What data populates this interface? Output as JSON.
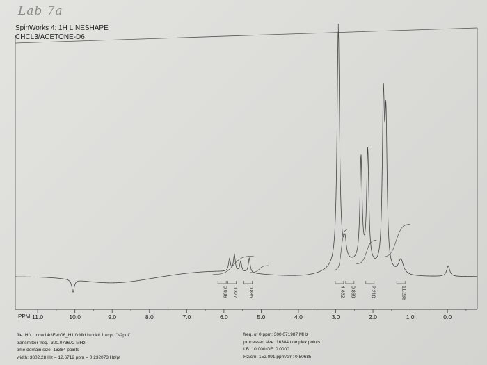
{
  "handwriting": "Lab 7a",
  "header": {
    "title": "SpinWorks 4:  1H LINESHAPE",
    "solvent": "CHCL3/ACETONE-D6"
  },
  "chart_data": {
    "type": "line",
    "title": "SpinWorks 4:  1H LINESHAPE",
    "subtitle": "CHCL3/ACETONE-D6",
    "xlabel": "PPM",
    "ylabel": "",
    "xlim": [
      11.6,
      -0.8
    ],
    "x_reversed": true,
    "ylim": [
      0,
      100
    ],
    "grid": false,
    "x_ticks": [
      11.0,
      10.0,
      9.0,
      8.0,
      7.0,
      6.0,
      5.0,
      4.0,
      3.0,
      2.0,
      1.0,
      0.0
    ],
    "x_tick_labels": [
      "11.0",
      "10.0",
      "9.0",
      "8.0",
      "7.0",
      "6.0",
      "5.0",
      "4.0",
      "3.0",
      "2.0",
      "1.0",
      "0.0"
    ],
    "peaks": [
      {
        "ppm": 10.05,
        "height": -6,
        "width": 0.04
      },
      {
        "ppm": 5.85,
        "height": 6,
        "width": 0.03
      },
      {
        "ppm": 5.72,
        "height": 8,
        "width": 0.03
      },
      {
        "ppm": 5.55,
        "height": 5,
        "width": 0.03
      },
      {
        "ppm": 5.32,
        "height": 7,
        "width": 0.03
      },
      {
        "ppm": 2.93,
        "height": 115,
        "width": 0.04
      },
      {
        "ppm": 2.75,
        "height": 9,
        "width": 0.04
      },
      {
        "ppm": 2.32,
        "height": 50,
        "width": 0.035
      },
      {
        "ppm": 2.14,
        "height": 54,
        "width": 0.035
      },
      {
        "ppm": 1.72,
        "height": 76,
        "width": 0.035
      },
      {
        "ppm": 1.65,
        "height": 66,
        "width": 0.035
      },
      {
        "ppm": 1.25,
        "height": 7,
        "width": 0.08
      },
      {
        "ppm": -0.02,
        "height": 5,
        "width": 0.05
      }
    ],
    "integral_labels": [
      {
        "ppm": 6.05,
        "label": "0.996"
      },
      {
        "ppm": 5.78,
        "label": "0.327"
      },
      {
        "ppm": 5.35,
        "label": "0.885"
      },
      {
        "ppm": 2.9,
        "label": "4.862"
      },
      {
        "ppm": 2.62,
        "label": "0.869"
      },
      {
        "ppm": 2.08,
        "label": "2.210"
      },
      {
        "ppm": 1.25,
        "label": "11.236"
      }
    ]
  },
  "footer": {
    "left": [
      "file: H:\\...mnw14c\\Feb06_H1.fid\\fid  block# 1  expt: \"s2pul\"",
      "transmitter freq.: 300.073672 MHz",
      "time domain size: 16384 points",
      "width: 3802.28 Hz = 12.6712 ppm = 0.232073 Hz/pt"
    ],
    "right": [
      "freq. of 0 ppm: 300.071987 MHz",
      "processed size: 16384 complex points",
      "LB: 10.000    GF: 0.0000",
      "Hz/cm: 152.091    ppm/cm: 0.50685"
    ]
  }
}
